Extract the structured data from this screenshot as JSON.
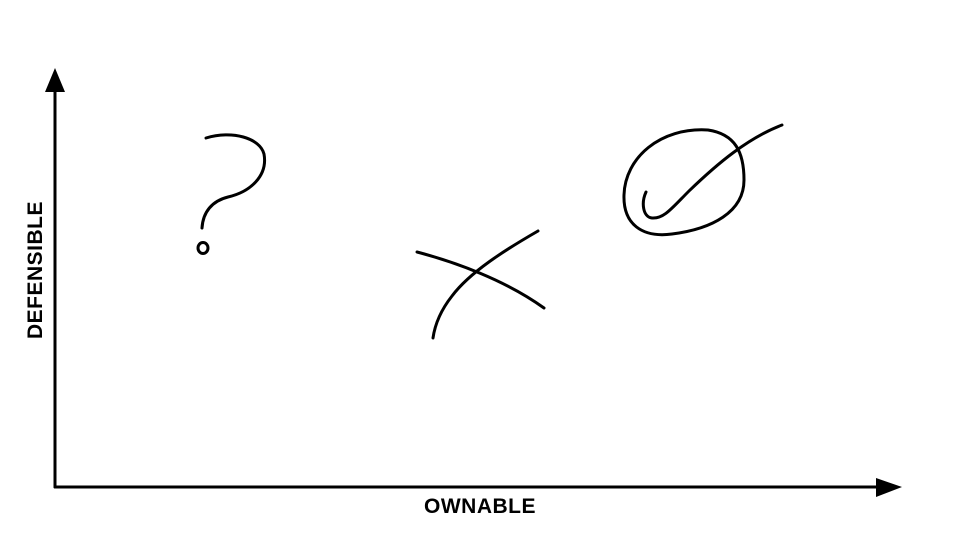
{
  "axes": {
    "x_label": "OWNABLE",
    "y_label": "DEFENSIBLE"
  },
  "marks": [
    {
      "symbol": "question-mark"
    },
    {
      "symbol": "cross-mark"
    },
    {
      "symbol": "circled-check-mark"
    }
  ],
  "colors": {
    "ink": "#000000",
    "background": "#ffffff"
  }
}
